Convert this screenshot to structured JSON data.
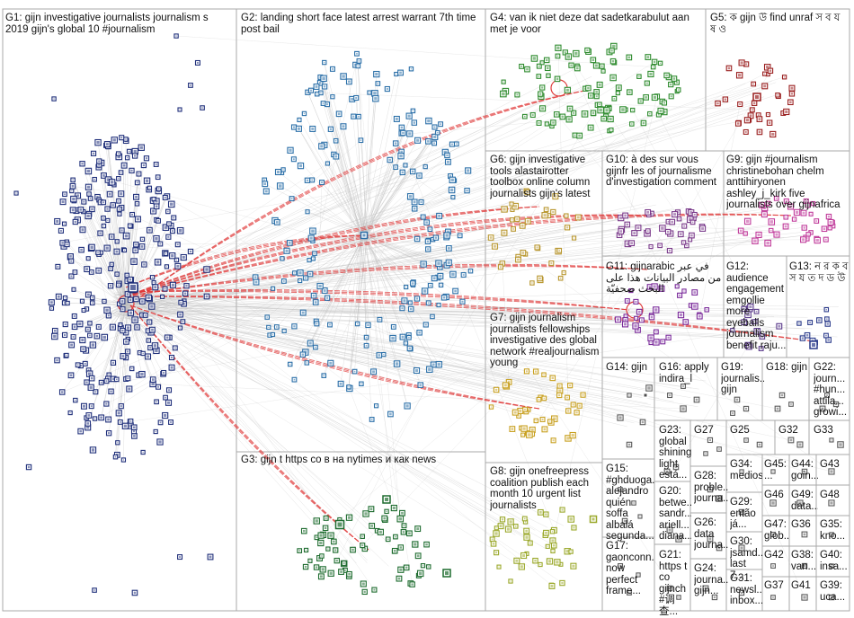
{
  "groups": [
    {
      "id": "G1",
      "label": "G1: gijn investigative journalists journalism s 2019 gijn's global 10 #journalism"
    },
    {
      "id": "G2",
      "label": "G2: landing short face latest arrest warrant 7th time post bail"
    },
    {
      "id": "G3",
      "label": "G3: gijn t https co в на nytimes и как news"
    },
    {
      "id": "G4",
      "label": "G4: van ik niet deze dat sadetkarabulut aan met je voor"
    },
    {
      "id": "G5",
      "label": "G5: ক gijn উ find unraf স ব য ষ ও"
    },
    {
      "id": "G6",
      "label": "G6: gijn investigative tools alastairotter toolbox online column journalists gijn's latest"
    },
    {
      "id": "G7",
      "label": "G7: gijn journalism journalists fellowships investigative des global network #realjournalism young"
    },
    {
      "id": "G8",
      "label": "G8: gijn onefreepress coalition publish each month 10 urgent list journalists"
    },
    {
      "id": "G9",
      "label": "G9: gijn #journalism christinebohan chelm anttihiryonen ashley_j_kirk five journalists over gijnafrica"
    },
    {
      "id": "G10",
      "label": "G10: à des sur vous gijnfr les of journalisme d'investigation comment"
    },
    {
      "id": "G11",
      "label": "G11: gijnarabic في عبر من مصادر البيانات هذا على البحث صحفيّة"
    },
    {
      "id": "G12",
      "label": "G12: audience engagement emgollie more eyeballs journalism benefit raju..."
    },
    {
      "id": "G13",
      "label": "G13: ন র ক ব স য ত দ ড উ"
    },
    {
      "id": "G14",
      "label": "G14: gijn"
    },
    {
      "id": "G15",
      "label": "G15: #ghduoga... alejandro quién soffa albalá segunda..."
    },
    {
      "id": "G16",
      "label": "G16: apply indira_l"
    },
    {
      "id": "G17",
      "label": "G17: gaonconn... now perfect frame..."
    },
    {
      "id": "G18",
      "label": "G18: gijn"
    },
    {
      "id": "G19",
      "label": "G19: journalis... gijn"
    },
    {
      "id": "G20",
      "label": "G20: betwe... sandr... ariell... diana..."
    },
    {
      "id": "G21",
      "label": "G21: https t co gijnch #调查..."
    },
    {
      "id": "G22",
      "label": "G22: journ... #hun... attila... growi..."
    },
    {
      "id": "G23",
      "label": "G23: global shining light está..."
    },
    {
      "id": "G24",
      "label": "G24: journa... gijn..."
    },
    {
      "id": "G25",
      "label": "G25"
    },
    {
      "id": "G26",
      "label": "G26: data journa..."
    },
    {
      "id": "G27",
      "label": "G27"
    },
    {
      "id": "G28",
      "label": "G28: proble... journa..."
    },
    {
      "id": "G29",
      "label": "G29: então já..."
    },
    {
      "id": "G30",
      "label": "G30: jsamd... last 7..."
    },
    {
      "id": "G31",
      "label": "G31: newsl... inbox..."
    },
    {
      "id": "G32",
      "label": "G32"
    },
    {
      "id": "G33",
      "label": "G33"
    },
    {
      "id": "G34",
      "label": "G34: mediossear..."
    },
    {
      "id": "G35",
      "label": "G35: kno..."
    },
    {
      "id": "G36",
      "label": "G36"
    },
    {
      "id": "G37",
      "label": "G37"
    },
    {
      "id": "G38",
      "label": "G38: van..."
    },
    {
      "id": "G39",
      "label": "G39: uca..."
    },
    {
      "id": "G40",
      "label": "G40: insa..."
    },
    {
      "id": "G41",
      "label": "G41"
    },
    {
      "id": "G42",
      "label": "G42"
    },
    {
      "id": "G43",
      "label": "G43"
    },
    {
      "id": "G44",
      "label": "G44: goin..."
    },
    {
      "id": "G45",
      "label": "G45: ..."
    },
    {
      "id": "G46",
      "label": "G46"
    },
    {
      "id": "G47",
      "label": "G47: glob..."
    },
    {
      "id": "G48",
      "label": "G48"
    },
    {
      "id": "G49",
      "label": "G49: data..."
    }
  ],
  "colors": {
    "border": "#a8a8a8",
    "edge": "#bdbdbd",
    "highlight_edge": "#e03a3a",
    "G1": "#1f2f7a",
    "G2": "#2b6fa8",
    "G3": "#1d6b2e",
    "G4": "#2e8b2e",
    "G5": "#9a1f1f",
    "G6": "#b8962e",
    "G7": "#c8a020",
    "G8": "#9aa82a",
    "G9": "#c03a9a",
    "G10": "#7a3a8a",
    "G11": "#7a2a9a",
    "G12": "#5a3a8a",
    "G13": "#2a3a8a",
    "small": "#5a5a5a"
  }
}
